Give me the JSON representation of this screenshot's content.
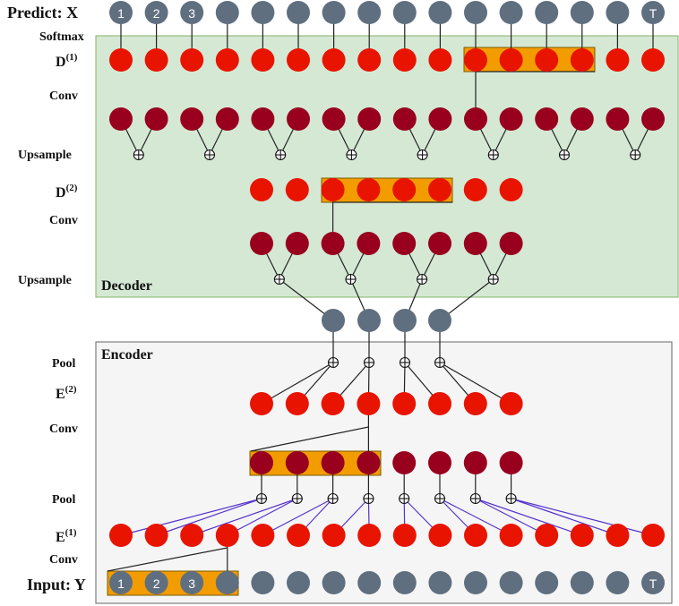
{
  "labels": {
    "predict": "Predict: X",
    "softmax": "Softmax",
    "d1_base": "D",
    "d1_sup": "(1)",
    "conv_1": "Conv",
    "upsample_1": "Upsample",
    "d2_base": "D",
    "d2_sup": "(2)",
    "conv_2": "Conv",
    "upsample_2": "Upsample",
    "decoder": "Decoder",
    "encoder": "Encoder",
    "pool_1": "Pool",
    "e2_base": "E",
    "e2_sup": "(2)",
    "conv_3": "Conv",
    "pool_2": "Pool",
    "e1_base": "E",
    "e1_sup": "(1)",
    "conv_4": "Conv",
    "input": "Input: Y"
  },
  "token_labels": {
    "top": [
      "1",
      "2",
      "3",
      "",
      "",
      "",
      "",
      "",
      "",
      "",
      "",
      "",
      "",
      "",
      "",
      "T"
    ],
    "bottom": [
      "1",
      "2",
      "3",
      "",
      "",
      "",
      "",
      "",
      "",
      "",
      "",
      "",
      "",
      "",
      "",
      "T"
    ]
  },
  "colors": {
    "token": "#5f6f7f",
    "red": "#e81400",
    "dark_red": "#98001e",
    "highlight": "#f39c00",
    "decoder_bg": "#d5e8d4",
    "decoder_border": "#82b366",
    "encoder_bg": "#f5f5f5",
    "encoder_border": "#666666",
    "line": "#222222",
    "line_blue": "#5533cc"
  }
}
